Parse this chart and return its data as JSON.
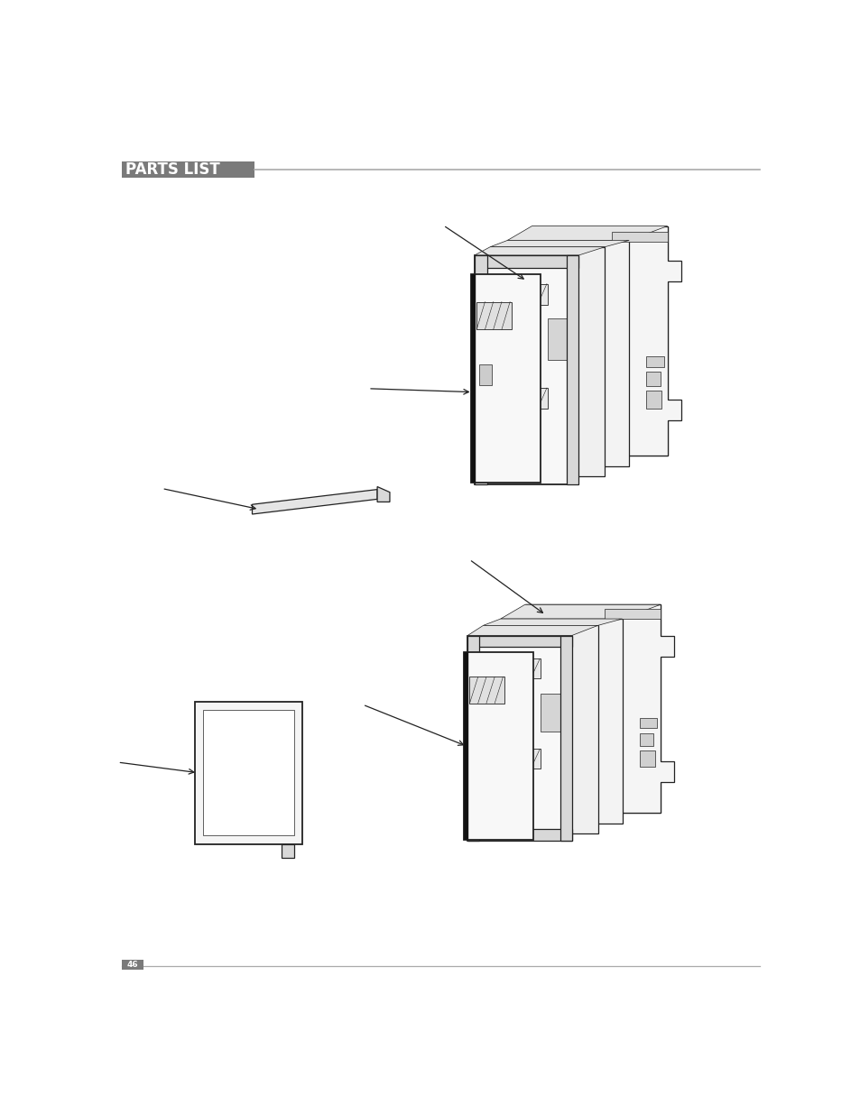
{
  "title": "PARTS LIST",
  "page_number": "46",
  "bg_color": "#ffffff",
  "header_bg": "#7a7a7a",
  "header_text_color": "#ffffff",
  "header_font_size": 12,
  "line_color": "#aaaaaa",
  "dc": "#222222",
  "fill_light": "#f5f5f5",
  "fill_white": "#ffffff",
  "fill_gray": "#e0e0e0"
}
